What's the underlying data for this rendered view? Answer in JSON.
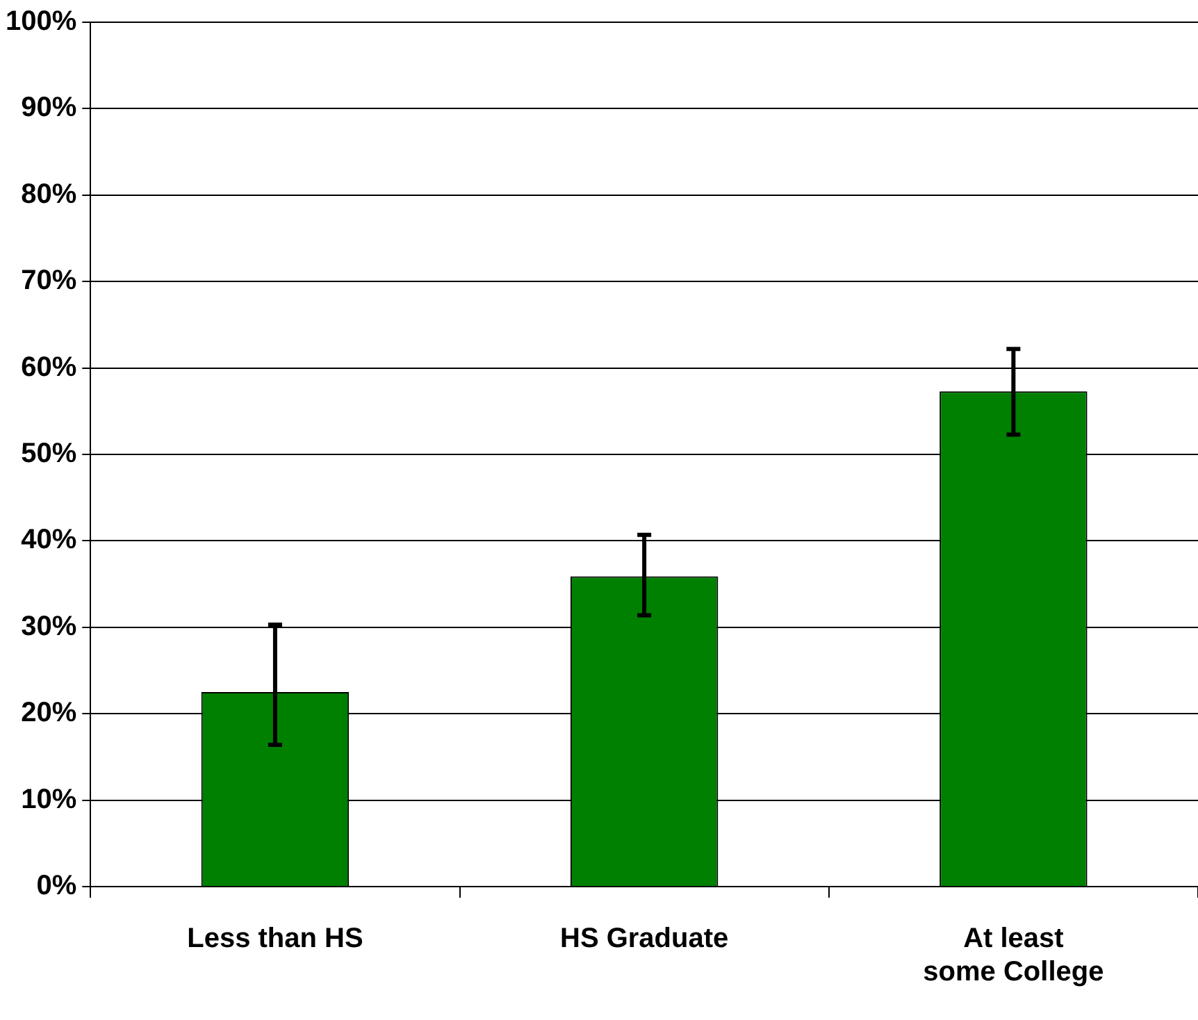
{
  "chart_data": {
    "type": "bar",
    "categories": [
      "Less than HS",
      "HS Graduate",
      "At least some College"
    ],
    "values": [
      22.5,
      35.9,
      57.3
    ],
    "errors": [
      [
        16.4,
        30.3
      ],
      [
        31.4,
        40.7
      ],
      [
        52.3,
        62.2
      ]
    ],
    "color": "#008000",
    "ylim": [
      0,
      100
    ],
    "yticks": [
      {
        "value": 0,
        "label": "0%"
      },
      {
        "value": 10,
        "label": "10%"
      },
      {
        "value": 20,
        "label": "20%"
      },
      {
        "value": 30,
        "label": "30%"
      },
      {
        "value": 40,
        "label": "40%"
      },
      {
        "value": 50,
        "label": "50%"
      },
      {
        "value": 60,
        "label": "60%"
      },
      {
        "value": 70,
        "label": "70%"
      },
      {
        "value": 80,
        "label": "80%"
      },
      {
        "value": 90,
        "label": "90%"
      },
      {
        "value": 100,
        "label": "100%"
      }
    ],
    "grid": "y"
  }
}
